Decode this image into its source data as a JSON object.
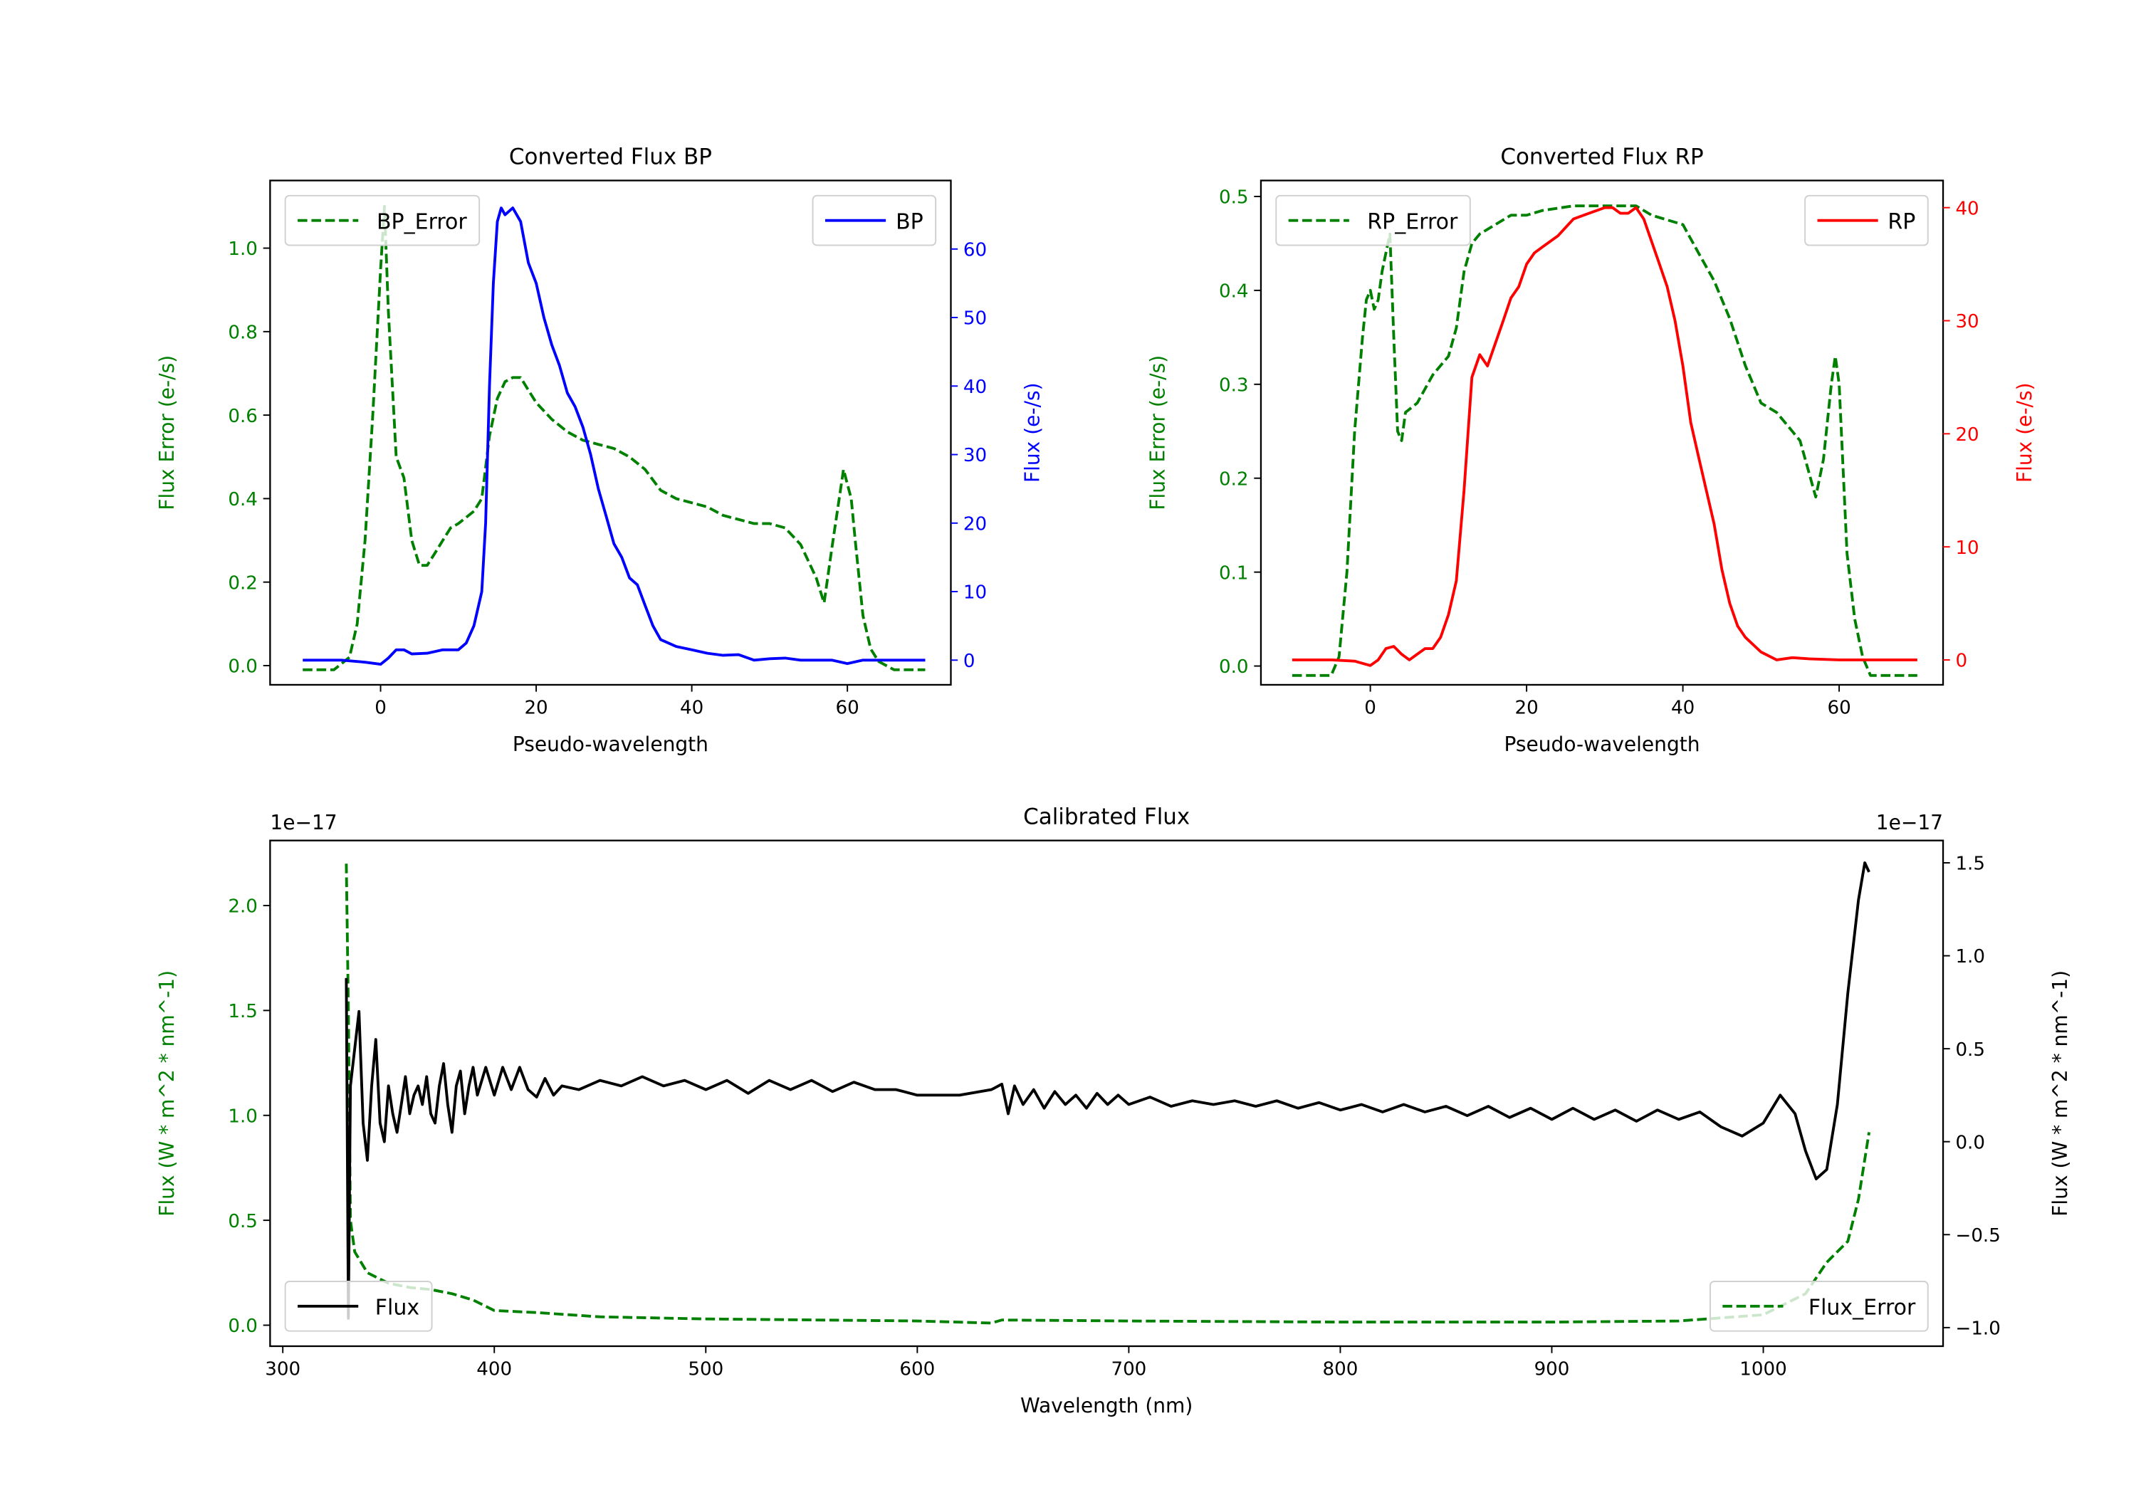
{
  "colors": {
    "error": "#008000",
    "bp": "#0000ff",
    "rp": "#ff0000",
    "flux": "#000000"
  },
  "chart_data": [
    {
      "type": "line",
      "title": "Converted Flux BP",
      "xlabel": "Pseudo-wavelength",
      "ylabel_left": "Flux Error (e-/s)",
      "ylabel_right": "Flux (e-/s)",
      "xlim": [
        -14.2,
        73.3
      ],
      "ylim_left": [
        -0.046,
        1.162
      ],
      "ylim_right": [
        -3.6,
        70
      ],
      "xticks": [
        0,
        20,
        40,
        60
      ],
      "xtick_labels": [
        "0",
        "20",
        "40",
        "60"
      ],
      "yticks_left": [
        0,
        0.2,
        0.4,
        0.6,
        0.8,
        1.0
      ],
      "ytick_labels_left": [
        "0.0",
        "0.2",
        "0.4",
        "0.6",
        "0.8",
        "1.0"
      ],
      "yticks_right": [
        0,
        10,
        20,
        30,
        40,
        50,
        60
      ],
      "ytick_labels_right": [
        "0",
        "10",
        "20",
        "30",
        "40",
        "50",
        "60"
      ],
      "right_color": "#0000ff",
      "legend_left": "BP_Error",
      "legend_right": "BP",
      "legend_left_pos": "upper-left",
      "legend_right_pos": "upper-right",
      "series_left": {
        "name": "BP_Error",
        "style": "dashed",
        "color": "#008000",
        "x": [
          -10,
          -6,
          -4,
          -3,
          -2,
          -1,
          0,
          0.5,
          1,
          2,
          3,
          4,
          5,
          6,
          7,
          8,
          9,
          10,
          12,
          13,
          14,
          15,
          16,
          17,
          18,
          19,
          20,
          22,
          24,
          26,
          28,
          30,
          32,
          34,
          36,
          38,
          40,
          42,
          44,
          46,
          48,
          50,
          52,
          54,
          56,
          57,
          58,
          59.5,
          60.5,
          61,
          62,
          63,
          64,
          66,
          70
        ],
        "y": [
          -0.01,
          -0.01,
          0.02,
          0.1,
          0.3,
          0.6,
          0.95,
          1.1,
          0.85,
          0.5,
          0.45,
          0.3,
          0.24,
          0.24,
          0.27,
          0.3,
          0.33,
          0.34,
          0.37,
          0.4,
          0.55,
          0.64,
          0.68,
          0.69,
          0.69,
          0.66,
          0.63,
          0.59,
          0.56,
          0.54,
          0.53,
          0.52,
          0.5,
          0.47,
          0.42,
          0.4,
          0.39,
          0.38,
          0.36,
          0.35,
          0.34,
          0.34,
          0.33,
          0.29,
          0.21,
          0.15,
          0.28,
          0.47,
          0.4,
          0.3,
          0.12,
          0.04,
          0.01,
          -0.01,
          -0.01
        ]
      },
      "series_right": {
        "name": "BP",
        "style": "solid",
        "color": "#0000ff",
        "x": [
          -10,
          -5,
          -2,
          0,
          1,
          2,
          3,
          4,
          6,
          8,
          10,
          11,
          12,
          13,
          13.5,
          14,
          14.5,
          15,
          15.5,
          16,
          17,
          18,
          19,
          20,
          21,
          22,
          23,
          24,
          25,
          26,
          27,
          28,
          29,
          30,
          31,
          32,
          33,
          34,
          35,
          36,
          38,
          40,
          42,
          44,
          46,
          48,
          50,
          52,
          54,
          56,
          58,
          60,
          62,
          66,
          70
        ],
        "y": [
          0,
          0,
          -0.3,
          -0.6,
          0.3,
          1.5,
          1.5,
          0.9,
          1.0,
          1.5,
          1.5,
          2.5,
          5,
          10,
          20,
          40,
          55,
          64,
          66,
          65,
          66,
          64,
          58,
          55,
          50,
          46,
          43,
          39,
          37,
          34,
          30,
          25,
          21,
          17,
          15,
          12,
          11,
          8,
          5,
          3,
          2,
          1.5,
          1,
          0.7,
          0.8,
          0,
          0.2,
          0.3,
          0,
          0,
          0,
          -0.5,
          0,
          0,
          0
        ]
      }
    },
    {
      "type": "line",
      "title": "Converted Flux RP",
      "xlabel": "Pseudo-wavelength",
      "ylabel_left": "Flux Error (e-/s)",
      "ylabel_right": "Flux (e-/s)",
      "xlim": [
        -14,
        73.3
      ],
      "ylim_left": [
        -0.02,
        0.517
      ],
      "ylim_right": [
        -2.2,
        42.4
      ],
      "xticks": [
        0,
        20,
        40,
        60
      ],
      "xtick_labels": [
        "0",
        "20",
        "40",
        "60"
      ],
      "yticks_left": [
        0,
        0.1,
        0.2,
        0.3,
        0.4,
        0.5
      ],
      "ytick_labels_left": [
        "0.0",
        "0.1",
        "0.2",
        "0.3",
        "0.4",
        "0.5"
      ],
      "yticks_right": [
        0,
        10,
        20,
        30,
        40
      ],
      "ytick_labels_right": [
        "0",
        "10",
        "20",
        "30",
        "40"
      ],
      "right_color": "#ff0000",
      "legend_left": "RP_Error",
      "legend_right": "RP",
      "legend_left_pos": "upper-left",
      "legend_right_pos": "upper-right",
      "series_left": {
        "name": "RP_Error",
        "style": "dashed",
        "color": "#008000",
        "x": [
          -10,
          -5,
          -4,
          -3,
          -2,
          -1,
          -0.5,
          0,
          0.5,
          1,
          1.5,
          2,
          2.5,
          3,
          3.5,
          4,
          4.5,
          6,
          8,
          10,
          11,
          12,
          13,
          14,
          16,
          18,
          20,
          22,
          26,
          30,
          34,
          36,
          38,
          40,
          42,
          44,
          46,
          48,
          50,
          52,
          54,
          55,
          56,
          57,
          58,
          59,
          59.5,
          60,
          61,
          62,
          63,
          64,
          70
        ],
        "y": [
          -0.01,
          -0.01,
          0.01,
          0.1,
          0.25,
          0.35,
          0.39,
          0.4,
          0.38,
          0.39,
          0.42,
          0.44,
          0.46,
          0.35,
          0.25,
          0.24,
          0.27,
          0.28,
          0.31,
          0.33,
          0.36,
          0.42,
          0.45,
          0.46,
          0.47,
          0.48,
          0.48,
          0.485,
          0.49,
          0.49,
          0.49,
          0.48,
          0.475,
          0.47,
          0.44,
          0.41,
          0.37,
          0.32,
          0.28,
          0.27,
          0.25,
          0.24,
          0.21,
          0.18,
          0.22,
          0.3,
          0.33,
          0.3,
          0.12,
          0.05,
          0.01,
          -0.01,
          -0.01
        ]
      },
      "series_right": {
        "name": "RP",
        "style": "solid",
        "color": "#ff0000",
        "x": [
          -10,
          -5,
          -2,
          0,
          1,
          2,
          3,
          4,
          5,
          6,
          7,
          8,
          9,
          10,
          11,
          12,
          13,
          14,
          15,
          16,
          17,
          18,
          19,
          20,
          21,
          22,
          24,
          26,
          28,
          30,
          31,
          32,
          33,
          34,
          35,
          36,
          37,
          38,
          39,
          40,
          41,
          42,
          43,
          44,
          45,
          46,
          47,
          48,
          50,
          52,
          54,
          56,
          60,
          70
        ],
        "y": [
          0,
          0,
          -0.1,
          -0.5,
          0,
          1,
          1.2,
          0.5,
          0,
          0.5,
          1,
          1,
          2,
          4,
          7,
          15,
          25,
          27,
          26,
          28,
          30,
          32,
          33,
          35,
          36,
          36.5,
          37.5,
          39,
          39.5,
          40,
          40,
          39.5,
          39.5,
          40,
          39,
          37,
          35,
          33,
          30,
          26,
          21,
          18,
          15,
          12,
          8,
          5,
          3,
          2,
          0.7,
          0,
          0.2,
          0.1,
          0,
          0
        ]
      }
    },
    {
      "type": "line",
      "title": "Calibrated Flux",
      "xlabel": "Wavelength (nm)",
      "ylabel_left": "Flux (W * m^2 * nm^-1)",
      "ylabel_right": "Flux (W * m^2 * nm^-1)",
      "offset_left": "1e−17",
      "offset_right": "1e−17",
      "xlim": [
        294,
        1085
      ],
      "ylim_left": [
        -0.1,
        2.31
      ],
      "ylim_right": [
        -1.1,
        1.62
      ],
      "xticks": [
        300,
        400,
        500,
        600,
        700,
        800,
        900,
        1000
      ],
      "xtick_labels": [
        "300",
        "400",
        "500",
        "600",
        "700",
        "800",
        "900",
        "1000"
      ],
      "yticks_left": [
        0,
        0.5,
        1.0,
        1.5,
        2.0
      ],
      "ytick_labels_left": [
        "0.0",
        "0.5",
        "1.0",
        "1.5",
        "2.0"
      ],
      "yticks_right": [
        -1.0,
        -0.5,
        0,
        0.5,
        1.0,
        1.5
      ],
      "ytick_labels_right": [
        "−1.0",
        "−0.5",
        "0.0",
        "0.5",
        "1.0",
        "1.5"
      ],
      "right_color": "#000000",
      "legend_left": "Flux_Error",
      "legend_right": "Flux",
      "legend_left_pos": "lower-right",
      "legend_right_pos": "lower-left",
      "series_left": {
        "name": "Flux_Error",
        "style": "dashed",
        "color": "#008000",
        "x": [
          330,
          331,
          332,
          334,
          340,
          350,
          360,
          370,
          380,
          390,
          400,
          420,
          450,
          500,
          600,
          635,
          640,
          700,
          800,
          900,
          960,
          1000,
          1020,
          1030,
          1040,
          1045,
          1050
        ],
        "y": [
          2.2,
          1.5,
          0.5,
          0.35,
          0.25,
          0.2,
          0.18,
          0.17,
          0.15,
          0.12,
          0.07,
          0.06,
          0.04,
          0.03,
          0.02,
          0.01,
          0.025,
          0.02,
          0.015,
          0.015,
          0.02,
          0.05,
          0.15,
          0.3,
          0.4,
          0.6,
          0.92
        ]
      },
      "series_right": {
        "name": "Flux",
        "style": "solid",
        "color": "#000000",
        "x": [
          330,
          331,
          332,
          334,
          336,
          338,
          340,
          342,
          344,
          346,
          348,
          350,
          352,
          354,
          356,
          358,
          360,
          362,
          364,
          366,
          368,
          370,
          372,
          374,
          376,
          378,
          380,
          382,
          384,
          386,
          388,
          390,
          392,
          396,
          400,
          404,
          408,
          412,
          416,
          420,
          424,
          428,
          432,
          440,
          450,
          460,
          470,
          480,
          490,
          500,
          510,
          520,
          530,
          540,
          550,
          560,
          570,
          580,
          590,
          600,
          620,
          635,
          640,
          643,
          646,
          650,
          655,
          660,
          665,
          670,
          675,
          680,
          685,
          690,
          695,
          700,
          710,
          720,
          730,
          740,
          750,
          760,
          770,
          780,
          790,
          800,
          810,
          820,
          830,
          840,
          850,
          860,
          870,
          880,
          890,
          900,
          910,
          920,
          930,
          940,
          950,
          960,
          970,
          980,
          990,
          1000,
          1008,
          1015,
          1020,
          1025,
          1030,
          1035,
          1040,
          1045,
          1048,
          1050
        ],
        "y": [
          0.88,
          -0.95,
          0.3,
          0.5,
          0.7,
          0.1,
          -0.1,
          0.3,
          0.55,
          0.1,
          0.0,
          0.3,
          0.15,
          0.05,
          0.2,
          0.35,
          0.15,
          0.25,
          0.3,
          0.2,
          0.35,
          0.15,
          0.1,
          0.3,
          0.42,
          0.2,
          0.05,
          0.3,
          0.38,
          0.15,
          0.3,
          0.4,
          0.25,
          0.4,
          0.25,
          0.4,
          0.28,
          0.4,
          0.28,
          0.24,
          0.34,
          0.25,
          0.3,
          0.28,
          0.33,
          0.3,
          0.35,
          0.3,
          0.33,
          0.28,
          0.33,
          0.26,
          0.33,
          0.28,
          0.33,
          0.27,
          0.32,
          0.28,
          0.28,
          0.25,
          0.25,
          0.28,
          0.31,
          0.15,
          0.3,
          0.2,
          0.28,
          0.18,
          0.27,
          0.2,
          0.25,
          0.18,
          0.26,
          0.2,
          0.25,
          0.2,
          0.24,
          0.19,
          0.22,
          0.2,
          0.22,
          0.19,
          0.22,
          0.18,
          0.21,
          0.17,
          0.2,
          0.16,
          0.2,
          0.16,
          0.19,
          0.14,
          0.19,
          0.13,
          0.18,
          0.12,
          0.18,
          0.12,
          0.17,
          0.11,
          0.17,
          0.12,
          0.16,
          0.08,
          0.03,
          0.1,
          0.25,
          0.15,
          -0.05,
          -0.2,
          -0.15,
          0.2,
          0.8,
          1.3,
          1.5,
          1.45
        ]
      }
    }
  ]
}
